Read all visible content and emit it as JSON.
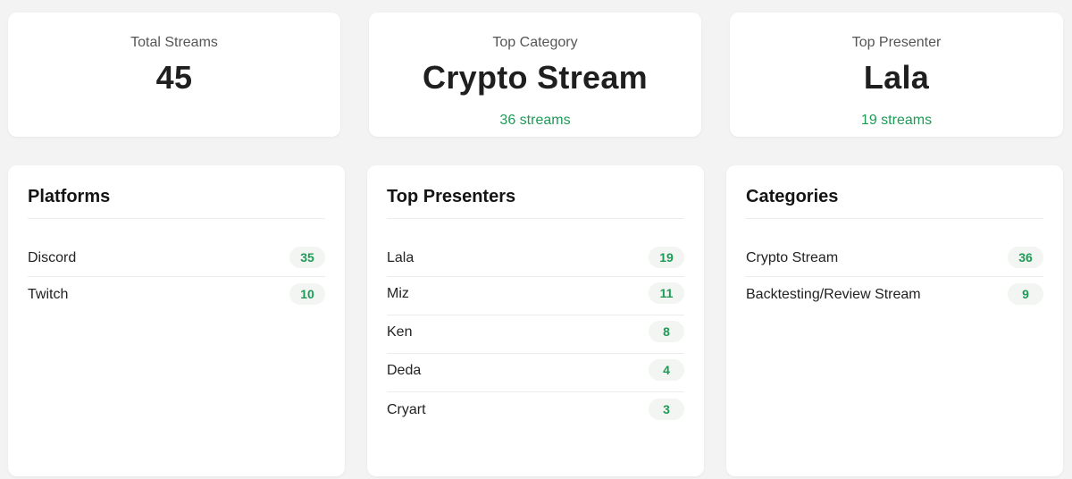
{
  "stats": {
    "total": {
      "label": "Total Streams",
      "value": "45"
    },
    "top_category": {
      "label": "Top Category",
      "value": "Crypto Stream",
      "sub": "36 streams"
    },
    "top_presenter": {
      "label": "Top Presenter",
      "value": "Lala",
      "sub": "19 streams"
    }
  },
  "platforms": {
    "title": "Platforms",
    "items": [
      {
        "label": "Discord",
        "count": "35"
      },
      {
        "label": "Twitch",
        "count": "10"
      }
    ]
  },
  "presenters": {
    "title": "Top Presenters",
    "items": [
      {
        "label": "Lala",
        "count": "19"
      },
      {
        "label": "Miz",
        "count": "11"
      },
      {
        "label": "Ken",
        "count": "8"
      },
      {
        "label": "Deda",
        "count": "4"
      },
      {
        "label": "Cryart",
        "count": "3"
      }
    ]
  },
  "categories": {
    "title": "Categories",
    "items": [
      {
        "label": "Crypto Stream",
        "count": "36"
      },
      {
        "label": "Backtesting/Review Stream",
        "count": "9"
      }
    ]
  },
  "colors": {
    "accent": "#1e9b57",
    "background": "#f3f3f3",
    "card": "#ffffff"
  }
}
